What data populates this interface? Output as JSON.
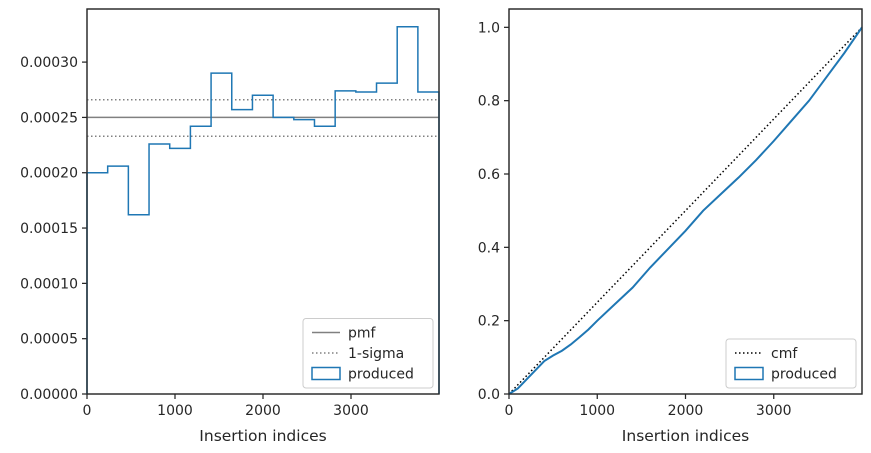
{
  "colors": {
    "produced": "#1f77b4",
    "pmf": "#808080",
    "sigma": "#808080",
    "cmf": "#000000",
    "axes": "#262626"
  },
  "chart_data": [
    {
      "type": "step-histogram",
      "xlabel": "Insertion indices",
      "ylabel": "",
      "xlim": [
        0,
        4000
      ],
      "ylim": [
        0,
        0.000348
      ],
      "x_ticks": [
        0,
        1000,
        2000,
        3000
      ],
      "x_tick_labels": [
        "0",
        "1000",
        "2000",
        "3000"
      ],
      "y_ticks": [
        0,
        5e-05,
        0.0001,
        0.00015,
        0.0002,
        0.00025,
        0.0003
      ],
      "y_tick_labels": [
        "0.00000",
        "0.00005",
        "0.00010",
        "0.00015",
        "0.00020",
        "0.00025",
        "0.00030"
      ],
      "grid": false,
      "legend_position": "lower right",
      "hlines": [
        {
          "name": "pmf",
          "y": 0.00025,
          "style": "solid"
        },
        {
          "name": "1-sigma",
          "y": 0.000266,
          "style": "dotted"
        },
        {
          "name": "1-sigma",
          "y": 0.000233,
          "style": "dotted"
        }
      ],
      "series": [
        {
          "name": "produced",
          "bin_edges": [
            0,
            235,
            470,
            705,
            940,
            1175,
            1410,
            1645,
            1880,
            2115,
            2350,
            2585,
            2820,
            3055,
            3290,
            3525,
            3760,
            4000
          ],
          "values": [
            0.0002,
            0.000206,
            0.000162,
            0.000226,
            0.000222,
            0.000242,
            0.00029,
            0.000257,
            0.00027,
            0.00025,
            0.000248,
            0.000242,
            0.000274,
            0.000273,
            0.000281,
            0.000332,
            0.000273
          ]
        }
      ],
      "legend": [
        "pmf",
        "1-sigma",
        "produced"
      ]
    },
    {
      "type": "line",
      "xlabel": "Insertion indices",
      "ylabel": "",
      "xlim": [
        0,
        4000
      ],
      "ylim": [
        0,
        1.05
      ],
      "x_ticks": [
        0,
        1000,
        2000,
        3000
      ],
      "x_tick_labels": [
        "0",
        "1000",
        "2000",
        "3000"
      ],
      "y_ticks": [
        0,
        0.2,
        0.4,
        0.6,
        0.8,
        1.0
      ],
      "y_tick_labels": [
        "0.0",
        "0.2",
        "0.4",
        "0.6",
        "0.8",
        "1.0"
      ],
      "grid": false,
      "legend_position": "lower right",
      "series": [
        {
          "name": "cmf",
          "style": "dotted",
          "x": [
            0,
            4000
          ],
          "y": [
            0,
            1.0
          ]
        },
        {
          "name": "produced",
          "style": "solid",
          "x": [
            0,
            100,
            200,
            300,
            400,
            500,
            600,
            700,
            800,
            900,
            1000,
            1200,
            1400,
            1600,
            1800,
            2000,
            2200,
            2400,
            2600,
            2800,
            3000,
            3200,
            3400,
            3600,
            3800,
            4000
          ],
          "y": [
            0,
            0.015,
            0.04,
            0.065,
            0.09,
            0.105,
            0.118,
            0.135,
            0.155,
            0.176,
            0.2,
            0.245,
            0.29,
            0.345,
            0.395,
            0.445,
            0.5,
            0.545,
            0.59,
            0.638,
            0.69,
            0.745,
            0.8,
            0.865,
            0.93,
            1.0
          ]
        }
      ],
      "legend": [
        "cmf",
        "produced"
      ]
    }
  ]
}
